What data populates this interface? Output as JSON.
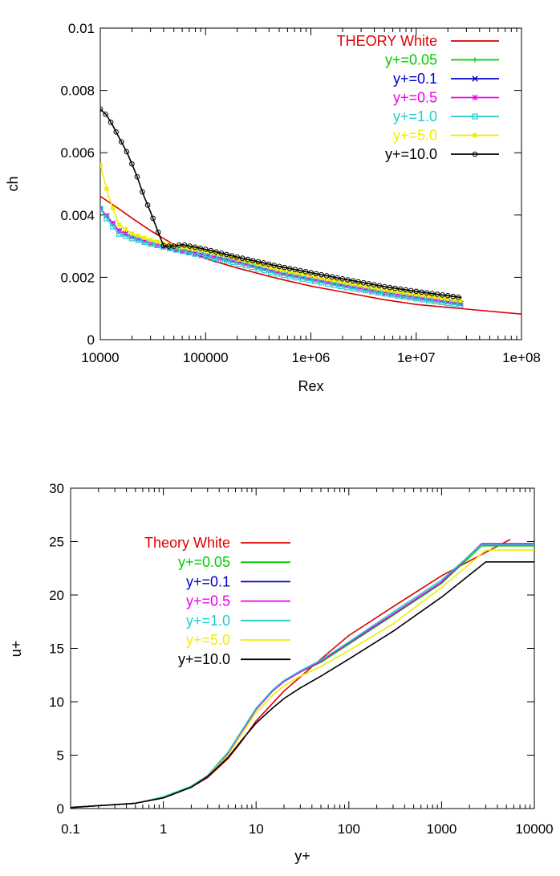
{
  "chart_data": [
    {
      "type": "line",
      "xlabel": "Rex",
      "ylabel": "ch",
      "xscale": "log",
      "xlim": [
        10000,
        100000000
      ],
      "ylim": [
        0,
        0.01
      ],
      "xticks": [
        {
          "value": 10000,
          "label": "10000"
        },
        {
          "value": 100000,
          "label": "100000"
        },
        {
          "value": 1000000,
          "label": "1e+06"
        },
        {
          "value": 10000000,
          "label": "1e+07"
        },
        {
          "value": 100000000,
          "label": "1e+08"
        }
      ],
      "yticks": [
        {
          "value": 0,
          "label": "0"
        },
        {
          "value": 0.002,
          "label": "0.002"
        },
        {
          "value": 0.004,
          "label": "0.004"
        },
        {
          "value": 0.006,
          "label": "0.006"
        },
        {
          "value": 0.008,
          "label": "0.008"
        },
        {
          "value": 0.01,
          "label": "0.01"
        }
      ],
      "grid": false,
      "legend": "top-right",
      "series": [
        {
          "name": "THEORY White",
          "color": "#dd0000",
          "marker": "none",
          "x": [
            10000,
            15000,
            20000,
            30000,
            50000,
            100000,
            200000,
            500000,
            1000000,
            2000000,
            5000000,
            10000000,
            30000000,
            100000000
          ],
          "y": [
            0.0046,
            0.0042,
            0.0039,
            0.0035,
            0.00305,
            0.0026,
            0.0023,
            0.00195,
            0.00172,
            0.00153,
            0.00128,
            0.00113,
            0.00098,
            0.00082
          ]
        },
        {
          "name": "y+=0.05",
          "color": "#00cc00",
          "marker": "plus",
          "x": [
            10000,
            12000,
            15000,
            20000,
            30000,
            50000,
            100000,
            200000,
            500000,
            1000000,
            2000000,
            5000000,
            10000000,
            27000000
          ],
          "y": [
            0.0042,
            0.0039,
            0.0035,
            0.0033,
            0.0031,
            0.0029,
            0.0027,
            0.0025,
            0.00215,
            0.00195,
            0.00175,
            0.0015,
            0.00135,
            0.00115
          ]
        },
        {
          "name": "y+=0.1",
          "color": "#0000cc",
          "marker": "x",
          "x": [
            10000,
            12000,
            15000,
            20000,
            30000,
            50000,
            100000,
            200000,
            500000,
            1000000,
            2000000,
            5000000,
            10000000,
            27000000
          ],
          "y": [
            0.0042,
            0.0039,
            0.0035,
            0.0033,
            0.0031,
            0.0029,
            0.0027,
            0.0025,
            0.00215,
            0.00195,
            0.00175,
            0.0015,
            0.00135,
            0.00115
          ]
        },
        {
          "name": "y+=0.5",
          "color": "#ee00ee",
          "marker": "star",
          "x": [
            10000,
            12000,
            15000,
            20000,
            30000,
            50000,
            100000,
            200000,
            500000,
            1000000,
            2000000,
            5000000,
            10000000,
            27000000
          ],
          "y": [
            0.0042,
            0.0039,
            0.0035,
            0.0033,
            0.0031,
            0.0029,
            0.0027,
            0.0025,
            0.00215,
            0.00195,
            0.00175,
            0.0015,
            0.00135,
            0.00115
          ]
        },
        {
          "name": "y+=1.0",
          "color": "#22cccc",
          "marker": "square",
          "x": [
            10000,
            12000,
            15000,
            20000,
            30000,
            50000,
            100000,
            200000,
            500000,
            1000000,
            2000000,
            5000000,
            10000000,
            27000000
          ],
          "y": [
            0.0042,
            0.0038,
            0.0034,
            0.00325,
            0.00308,
            0.0029,
            0.00268,
            0.00245,
            0.0021,
            0.0019,
            0.0017,
            0.00148,
            0.00132,
            0.0011
          ]
        },
        {
          "name": "y+=5.0",
          "color": "#eeee00",
          "marker": "filled-square",
          "x": [
            10000,
            12000,
            15000,
            20000,
            30000,
            50000,
            100000,
            200000,
            500000,
            1000000,
            2000000,
            5000000,
            10000000,
            27000000
          ],
          "y": [
            0.0056,
            0.0046,
            0.0037,
            0.0034,
            0.0032,
            0.003,
            0.00285,
            0.0026,
            0.00225,
            0.00205,
            0.00185,
            0.0016,
            0.00145,
            0.00125
          ]
        },
        {
          "name": "y+=10.0",
          "color": "#000000",
          "marker": "circle",
          "x": [
            10000,
            11500,
            13000,
            15000,
            18000,
            22000,
            26000,
            30000,
            35000,
            40000,
            50000,
            60000,
            100000,
            200000,
            500000,
            1000000,
            2000000,
            5000000,
            10000000,
            27000000
          ],
          "y": [
            0.0074,
            0.0072,
            0.0069,
            0.0065,
            0.006,
            0.0053,
            0.0046,
            0.0041,
            0.0035,
            0.003,
            0.003,
            0.00305,
            0.0029,
            0.00265,
            0.00235,
            0.00215,
            0.00195,
            0.0017,
            0.00155,
            0.00135
          ]
        }
      ]
    },
    {
      "type": "line",
      "xlabel": "y+",
      "ylabel": "u+",
      "xscale": "log",
      "xlim": [
        0.1,
        10000
      ],
      "ylim": [
        0,
        30
      ],
      "xticks": [
        {
          "value": 0.1,
          "label": "0.1"
        },
        {
          "value": 1,
          "label": "1"
        },
        {
          "value": 10,
          "label": "10"
        },
        {
          "value": 100,
          "label": "100"
        },
        {
          "value": 1000,
          "label": "1000"
        },
        {
          "value": 10000,
          "label": "10000"
        }
      ],
      "yticks": [
        {
          "value": 0,
          "label": "0"
        },
        {
          "value": 5,
          "label": "5"
        },
        {
          "value": 10,
          "label": "10"
        },
        {
          "value": 15,
          "label": "15"
        },
        {
          "value": 20,
          "label": "20"
        },
        {
          "value": 25,
          "label": "25"
        },
        {
          "value": 30,
          "label": "30"
        }
      ],
      "grid": false,
      "legend": "top-left",
      "series": [
        {
          "name": "Theory White",
          "color": "#dd0000",
          "x": [
            0.1,
            0.5,
            1,
            2,
            3,
            5,
            7,
            10,
            20,
            50,
            100,
            300,
            1000,
            3000,
            5500
          ],
          "y": [
            0.1,
            0.5,
            1.0,
            2.0,
            2.9,
            4.7,
            6.3,
            8.2,
            11.0,
            14.0,
            16.2,
            18.9,
            21.8,
            24.0,
            25.2
          ]
        },
        {
          "name": "y+=0.05",
          "color": "#00cc00",
          "x": [
            0.1,
            0.5,
            1,
            2,
            3,
            5,
            7,
            10,
            15,
            20,
            30,
            50,
            100,
            300,
            1000,
            2700,
            10000
          ],
          "y": [
            0.1,
            0.5,
            1.0,
            2.0,
            3.0,
            5.2,
            7.2,
            9.3,
            11.0,
            11.9,
            12.8,
            13.7,
            15.4,
            18.1,
            21.1,
            24.6,
            24.6
          ]
        },
        {
          "name": "y+=0.1",
          "color": "#0000cc",
          "x": [
            0.1,
            0.5,
            1,
            2,
            3,
            5,
            7,
            10,
            15,
            20,
            30,
            50,
            100,
            300,
            1000,
            2700,
            10000
          ],
          "y": [
            0.1,
            0.5,
            1.0,
            2.0,
            3.0,
            5.2,
            7.2,
            9.3,
            11.0,
            11.9,
            12.8,
            13.8,
            15.5,
            18.2,
            21.2,
            24.8,
            24.8
          ]
        },
        {
          "name": "y+=0.5",
          "color": "#ee00ee",
          "x": [
            0.1,
            0.5,
            1,
            2,
            3,
            5,
            7,
            10,
            15,
            20,
            30,
            50,
            100,
            300,
            1000,
            2700,
            10000
          ],
          "y": [
            0.1,
            0.5,
            1.0,
            2.0,
            3.0,
            5.2,
            7.2,
            9.3,
            11.0,
            11.9,
            12.8,
            13.8,
            15.5,
            18.2,
            21.2,
            24.8,
            24.8
          ]
        },
        {
          "name": "y+=1.0",
          "color": "#22cccc",
          "x": [
            0.1,
            0.5,
            1,
            2,
            3,
            5,
            7,
            10,
            15,
            20,
            30,
            50,
            100,
            300,
            1000,
            2700,
            10000
          ],
          "y": [
            0.1,
            0.5,
            1.1,
            2.1,
            3.1,
            5.3,
            7.3,
            9.4,
            11.1,
            12.0,
            12.9,
            13.9,
            15.6,
            18.4,
            21.4,
            24.7,
            24.7
          ]
        },
        {
          "name": "y+=5.0",
          "color": "#eeee00",
          "x": [
            0.1,
            0.5,
            1,
            2,
            3,
            5,
            7,
            10,
            15,
            20,
            30,
            50,
            100,
            300,
            1000,
            3000,
            10000
          ],
          "y": [
            0.1,
            0.5,
            1.0,
            2.0,
            3.0,
            5.0,
            7.0,
            9.0,
            10.6,
            11.5,
            12.4,
            13.3,
            14.8,
            17.3,
            20.7,
            24.2,
            24.2
          ]
        },
        {
          "name": "y+=10.0",
          "color": "#000000",
          "x": [
            0.1,
            0.5,
            1,
            2,
            3,
            5,
            7,
            10,
            15,
            20,
            30,
            50,
            100,
            300,
            1000,
            3000,
            10000
          ],
          "y": [
            0.1,
            0.5,
            1.0,
            2.0,
            3.0,
            4.8,
            6.4,
            8.0,
            9.4,
            10.3,
            11.3,
            12.4,
            14.0,
            16.6,
            19.8,
            23.1,
            23.1
          ]
        }
      ]
    }
  ]
}
